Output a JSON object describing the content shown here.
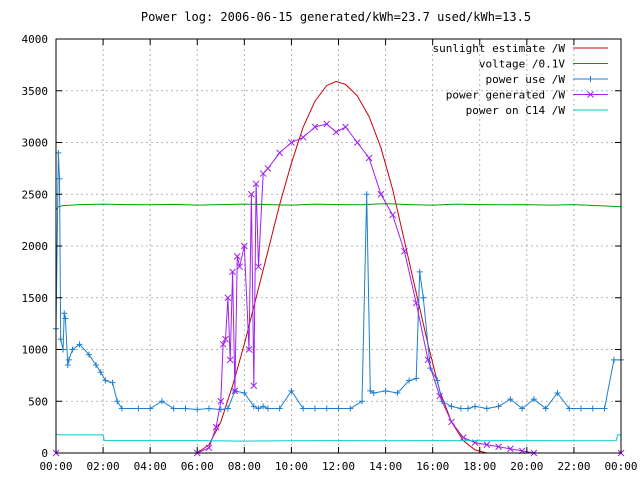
{
  "chart_data": {
    "type": "line",
    "title": "Power log: 2006-06-15 generated/kWh=23.7 used/kWh=13.5",
    "xlabel": "",
    "ylabel": "",
    "xlim": [
      0,
      24
    ],
    "ylim": [
      0,
      4000
    ],
    "grid": true,
    "legend_position": "top-right",
    "x_ticks": [
      "00:00",
      "02:00",
      "04:00",
      "06:00",
      "08:00",
      "10:00",
      "12:00",
      "14:00",
      "16:00",
      "18:00",
      "20:00",
      "22:00",
      "00:00"
    ],
    "y_ticks": [
      "0",
      "500",
      "1000",
      "1500",
      "2000",
      "2500",
      "3000",
      "3500",
      "4000"
    ],
    "series": [
      {
        "name": "sunlight estimate /W",
        "color": "#cc0000",
        "style": "line",
        "x": [
          6.0,
          6.5,
          7.0,
          7.5,
          8.0,
          8.5,
          9.0,
          9.5,
          10.0,
          10.5,
          11.0,
          11.5,
          11.9,
          12.3,
          12.8,
          13.3,
          13.8,
          14.3,
          14.8,
          15.3,
          15.8,
          16.3,
          16.8,
          17.3,
          17.8,
          18.3
        ],
        "y": [
          0,
          80,
          300,
          650,
          1050,
          1500,
          1950,
          2400,
          2800,
          3150,
          3400,
          3550,
          3590,
          3560,
          3450,
          3250,
          2950,
          2550,
          2050,
          1550,
          1050,
          600,
          300,
          120,
          30,
          0
        ]
      },
      {
        "name": "voltage /0.1V",
        "color": "#00a000",
        "style": "line",
        "x": [
          0,
          0.1,
          0.3,
          1,
          2,
          3,
          4,
          5,
          6,
          7,
          8,
          9,
          10,
          11,
          12,
          13,
          14,
          15,
          16,
          17,
          18,
          19,
          20,
          21,
          22,
          23,
          24
        ],
        "y": [
          2350,
          2380,
          2390,
          2400,
          2405,
          2400,
          2398,
          2402,
          2395,
          2400,
          2405,
          2400,
          2395,
          2405,
          2400,
          2398,
          2410,
          2400,
          2395,
          2405,
          2400,
          2398,
          2400,
          2395,
          2400,
          2390,
          2380
        ]
      },
      {
        "name": "power use /W",
        "color": "#1d7fd0",
        "style": "line-plus",
        "x": [
          0,
          0.1,
          0.15,
          0.2,
          0.3,
          0.35,
          0.4,
          0.5,
          0.55,
          0.7,
          1.0,
          1.4,
          1.7,
          1.9,
          2.1,
          2.4,
          2.6,
          2.8,
          3.5,
          4.0,
          4.5,
          5.0,
          5.5,
          6.0,
          6.5,
          7.0,
          7.3,
          7.6,
          8.0,
          8.4,
          8.6,
          8.8,
          9.0,
          9.5,
          10.0,
          10.5,
          11.0,
          11.5,
          12.0,
          12.5,
          13.0,
          13.2,
          13.35,
          13.5,
          14.0,
          14.5,
          15.0,
          15.3,
          15.45,
          15.6,
          15.9,
          16.2,
          16.4,
          16.8,
          17.2,
          17.5,
          17.8,
          18.3,
          18.8,
          19.3,
          19.8,
          20.3,
          20.8,
          21.3,
          21.8,
          22.3,
          22.8,
          23.3,
          23.7,
          24.0
        ],
        "y": [
          1200,
          2900,
          2650,
          1100,
          1000,
          1350,
          1300,
          850,
          900,
          1000,
          1050,
          950,
          850,
          780,
          700,
          680,
          500,
          430,
          430,
          430,
          500,
          430,
          430,
          420,
          430,
          420,
          430,
          600,
          580,
          450,
          430,
          450,
          430,
          430,
          600,
          430,
          430,
          430,
          430,
          430,
          500,
          2500,
          600,
          580,
          600,
          580,
          700,
          720,
          1750,
          1500,
          820,
          700,
          500,
          450,
          430,
          430,
          450,
          430,
          450,
          520,
          430,
          520,
          430,
          580,
          430,
          430,
          430,
          430,
          900,
          900
        ]
      },
      {
        "name": "power generated /W",
        "color": "#a020f0",
        "style": "line-x",
        "x": [
          0,
          6.0,
          6.5,
          6.8,
          7.0,
          7.1,
          7.2,
          7.3,
          7.4,
          7.5,
          7.6,
          7.7,
          7.8,
          8.0,
          8.2,
          8.3,
          8.4,
          8.5,
          8.6,
          8.8,
          9.0,
          9.5,
          10.0,
          10.5,
          11.0,
          11.5,
          11.9,
          12.3,
          12.8,
          13.3,
          13.8,
          14.3,
          14.8,
          15.3,
          15.8,
          16.3,
          16.8,
          17.3,
          17.8,
          18.3,
          18.8,
          19.3,
          19.8,
          20.3,
          24.0
        ],
        "y": [
          0,
          0,
          50,
          250,
          500,
          1050,
          1100,
          1500,
          900,
          1750,
          600,
          1900,
          1800,
          2000,
          1000,
          2500,
          650,
          2600,
          1800,
          2700,
          2750,
          2900,
          3000,
          3050,
          3150,
          3180,
          3100,
          3150,
          3000,
          2850,
          2500,
          2300,
          1950,
          1450,
          900,
          550,
          300,
          150,
          100,
          80,
          60,
          40,
          20,
          0,
          0
        ]
      },
      {
        "name": "power on C14 /W",
        "color": "#00cccc",
        "style": "line",
        "x": [
          0,
          0.2,
          1.0,
          2.0,
          2.05,
          6.0,
          8.0,
          10.0,
          12.0,
          14.0,
          16.0,
          18.0,
          20.0,
          22.0,
          23.8,
          23.85,
          24.0
        ],
        "y": [
          180,
          175,
          175,
          175,
          120,
          120,
          115,
          118,
          120,
          118,
          120,
          118,
          120,
          118,
          120,
          175,
          175
        ]
      }
    ]
  }
}
